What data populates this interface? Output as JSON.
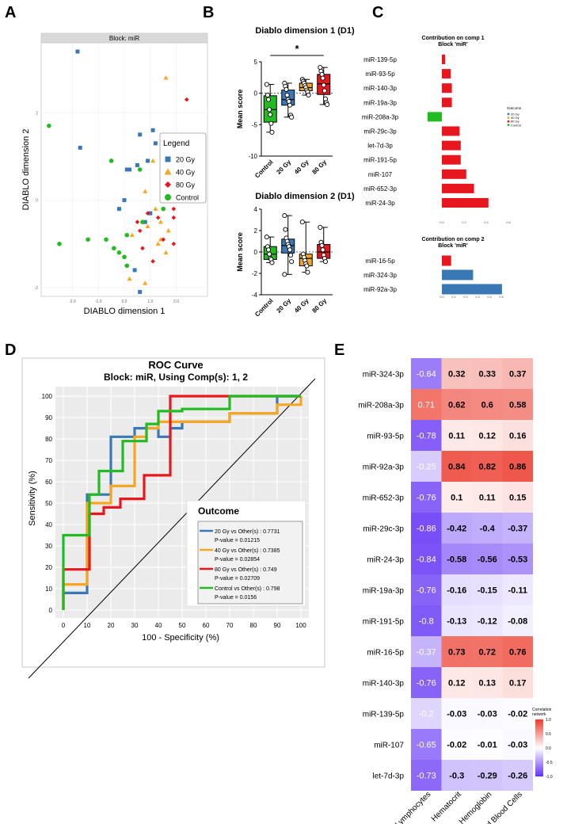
{
  "panels": {
    "a": "A",
    "b": "B",
    "c": "C",
    "d": "D",
    "e": "E"
  },
  "colors": {
    "g20": "#3a78b5",
    "g40": "#f5a623",
    "g80": "#e8171e",
    "ctrl": "#22bb22"
  },
  "chart_data": [
    {
      "id": "A",
      "type": "scatter",
      "title": "Block: miR",
      "xlabel": "DIABLO dimension 1",
      "ylabel": "DIABLO dimension 2",
      "xlim": [
        -3.2,
        3.2
      ],
      "ylim": [
        -2.2,
        3.6
      ],
      "xticks": [
        "-2.0",
        "-1.0",
        "0.0",
        "1.0",
        "2.0"
      ],
      "yticks": [
        "-2",
        "0",
        "2"
      ],
      "legend": {
        "title": "Legend",
        "entries": [
          "20 Gy",
          "40 Gy",
          "80 Gy",
          "Control"
        ]
      },
      "series": [
        {
          "name": "20 Gy",
          "points": [
            [
              -1.8,
              3.4
            ],
            [
              -1.7,
              1.2
            ],
            [
              0.6,
              1.5
            ],
            [
              1.1,
              1.6
            ],
            [
              1.2,
              1.3
            ],
            [
              0.5,
              0.8
            ],
            [
              0.1,
              0.7
            ],
            [
              0.2,
              0.7
            ],
            [
              0.9,
              0.9
            ],
            [
              1.0,
              -0.3
            ],
            [
              0.8,
              -0.5
            ],
            [
              -0.2,
              -0.2
            ],
            [
              0.4,
              -1.6
            ],
            [
              0.6,
              -2.1
            ],
            [
              0.0,
              0.0
            ]
          ]
        },
        {
          "name": "40 Gy",
          "points": [
            [
              1.6,
              2.8
            ],
            [
              1.1,
              0.9
            ],
            [
              0.8,
              0.2
            ],
            [
              1.2,
              -0.2
            ],
            [
              0.9,
              -0.6
            ],
            [
              1.4,
              -0.5
            ],
            [
              0.3,
              -0.8
            ],
            [
              1.3,
              -1.0
            ],
            [
              1.6,
              -1.2
            ],
            [
              0.2,
              -1.8
            ],
            [
              0.8,
              -1.9
            ],
            [
              1.7,
              -0.7
            ],
            [
              1.4,
              -0.9
            ]
          ]
        },
        {
          "name": "80 Gy",
          "points": [
            [
              2.4,
              2.3
            ],
            [
              2.1,
              1.3
            ],
            [
              2.2,
              0.5
            ],
            [
              1.3,
              -0.4
            ],
            [
              1.9,
              -0.2
            ],
            [
              0.9,
              -0.3
            ],
            [
              0.6,
              -0.7
            ],
            [
              1.5,
              -0.9
            ],
            [
              1.9,
              -1.0
            ],
            [
              0.7,
              -1.1
            ],
            [
              1.1,
              -1.4
            ],
            [
              0.5,
              -0.5
            ],
            [
              1.9,
              -0.4
            ]
          ]
        },
        {
          "name": "Control",
          "points": [
            [
              -2.9,
              1.7
            ],
            [
              -2.5,
              -1.0
            ],
            [
              -0.5,
              0.9
            ],
            [
              0.1,
              -0.8
            ],
            [
              -0.7,
              -0.9
            ],
            [
              -0.2,
              -1.2
            ],
            [
              0.1,
              -1.5
            ],
            [
              1.5,
              -0.2
            ],
            [
              0.7,
              -0.5
            ],
            [
              0.0,
              -1.3
            ],
            [
              -0.4,
              -1.1
            ],
            [
              0.6,
              0.7
            ],
            [
              -1.4,
              -0.9
            ]
          ]
        }
      ]
    },
    {
      "id": "B1",
      "type": "boxplot",
      "title": "Diablo dimension 1 (D1)",
      "ylabel": "Mean score",
      "categories": [
        "Control",
        "20 Gy",
        "40 Gy",
        "80 Gy"
      ],
      "ylim": [
        -10,
        5
      ],
      "yticks": [
        5,
        0,
        -5,
        -10
      ],
      "significance": "*",
      "boxes": [
        {
          "min": -6.2,
          "q1": -4.6,
          "median": -2.6,
          "q3": -0.4,
          "max": 1.4,
          "points": [
            1.4,
            -0.3,
            -1.0,
            -2.6,
            -3.4,
            -4.8,
            -6.2
          ]
        },
        {
          "min": -3.8,
          "q1": -1.9,
          "median": -1.0,
          "q3": 0.5,
          "max": 1.6,
          "points": [
            1.6,
            1.1,
            0.6,
            -0.3,
            -1.0,
            -1.3,
            -1.9,
            -3.5,
            -3.8
          ]
        },
        {
          "min": -0.3,
          "q1": 0.4,
          "median": 0.9,
          "q3": 1.6,
          "max": 2.2,
          "points": [
            2.2,
            1.9,
            1.6,
            1.2,
            0.9,
            0.5,
            0.2,
            -0.3
          ]
        },
        {
          "min": -1.8,
          "q1": -0.2,
          "median": 1.5,
          "q3": 3.0,
          "max": 4.1,
          "points": [
            4.1,
            3.5,
            3.0,
            2.4,
            1.3,
            0.4,
            -0.9,
            -1.5,
            -1.8
          ]
        }
      ]
    },
    {
      "id": "B2",
      "type": "boxplot",
      "title": "Diablo dimension 2 (D1)",
      "ylabel": "Mean score",
      "categories": [
        "Control",
        "20 Gy",
        "40 Gy",
        "80 Gy"
      ],
      "ylim": [
        -4,
        4
      ],
      "yticks": [
        4,
        2,
        0,
        -2,
        -4
      ],
      "boxes": [
        {
          "min": -1.0,
          "q1": -0.7,
          "median": -0.2,
          "q3": 0.5,
          "max": 1.4,
          "points": [
            1.4,
            0.5,
            0.2,
            -0.2,
            -0.6,
            -0.7,
            -1.0
          ]
        },
        {
          "min": -2.1,
          "q1": -0.1,
          "median": 0.6,
          "q3": 1.2,
          "max": 3.4,
          "points": [
            3.4,
            2.1,
            1.3,
            1.0,
            0.7,
            0.5,
            0.2,
            -0.3,
            -0.9,
            -2.1
          ]
        },
        {
          "min": -1.9,
          "q1": -1.3,
          "median": -0.6,
          "q3": -0.2,
          "max": 2.8,
          "points": [
            2.8,
            -0.2,
            -0.5,
            -0.8,
            -1.1,
            -1.3,
            -1.9
          ]
        },
        {
          "min": -0.9,
          "q1": -0.6,
          "median": 0.0,
          "q3": 0.7,
          "max": 2.3,
          "points": [
            2.3,
            0.9,
            0.6,
            0.2,
            -0.3,
            -0.6,
            -0.9
          ]
        }
      ]
    },
    {
      "id": "C1",
      "type": "bar",
      "title": "Contribution on comp 1\nBlock 'miR'",
      "categories": [
        "miR-139-5p",
        "miR-93-5p",
        "miR-140-3p",
        "miR-19a-3p",
        "miR-208a-3p",
        "miR-29c-3p",
        "let-7d-3p",
        "miR-191-5p",
        "miR-107",
        "miR-652-3p",
        "miR-24-3p"
      ],
      "values": [
        0.03,
        0.08,
        0.09,
        0.09,
        -0.13,
        0.16,
        0.17,
        0.17,
        0.22,
        0.29,
        0.42
      ],
      "groups": [
        "80 Gy",
        "80 Gy",
        "80 Gy",
        "80 Gy",
        "Control",
        "80 Gy",
        "80 Gy",
        "80 Gy",
        "80 Gy",
        "80 Gy",
        "80 Gy"
      ],
      "xticks": [
        "0.0",
        "0.2",
        "0.4",
        "0.6"
      ],
      "legend": {
        "title": "Outcome",
        "entries": [
          "20 Gy",
          "40 Gy",
          "80 Gy",
          "Control"
        ]
      }
    },
    {
      "id": "C2",
      "type": "bar",
      "title": "Contribution on comp 2\nBlock 'miR'",
      "categories": [
        "miR-16-5p",
        "miR-324-3p",
        "miR-92a-3p"
      ],
      "values": [
        0.08,
        0.27,
        0.52
      ],
      "groups": [
        "80 Gy",
        "20 Gy",
        "20 Gy"
      ],
      "xticks": [
        "0.0",
        "0.1",
        "0.2",
        "0.3",
        "0.4",
        "0.5"
      ]
    },
    {
      "id": "D",
      "type": "line",
      "title": "ROC Curve",
      "subtitle": "Block: miR, Using Comp(s): 1, 2",
      "xlabel": "100 - Specificity (%)",
      "ylabel": "Sensitivity (%)",
      "xlim": [
        0,
        100
      ],
      "ylim": [
        0,
        100
      ],
      "xticks": [
        0,
        10,
        20,
        30,
        40,
        50,
        60,
        70,
        80,
        90,
        100
      ],
      "yticks": [
        0,
        10,
        20,
        30,
        40,
        50,
        60,
        70,
        80,
        90,
        100
      ],
      "legend": {
        "title": "Outcome",
        "entries": [
          {
            "label": "20 Gy vs Other(s) : 0.7731",
            "pvalue": "P-value = 0.01215"
          },
          {
            "label": "40 Gy vs Other(s) : 0.7385",
            "pvalue": "P-value = 0.02854"
          },
          {
            "label": "80 Gy vs Other(s) : 0.749",
            "pvalue": "P-value = 0.02709"
          },
          {
            "label": "Control vs Other(s) : 0.798",
            "pvalue": "P-value = 0.0156"
          }
        ]
      },
      "series": [
        {
          "name": "20 Gy",
          "x": [
            0,
            0,
            10,
            10,
            10,
            20,
            20,
            30,
            30,
            40,
            40,
            45,
            45,
            50,
            50,
            70,
            70,
            90,
            90,
            100
          ],
          "y": [
            0,
            8,
            8,
            46,
            54,
            54,
            81,
            81,
            85,
            85,
            81,
            81,
            85,
            85,
            88,
            88,
            92,
            92,
            100,
            100
          ]
        },
        {
          "name": "40 Gy",
          "x": [
            0,
            0,
            10,
            10,
            20,
            20,
            30,
            30,
            35,
            35,
            40,
            40,
            70,
            70,
            90,
            90,
            100,
            100
          ],
          "y": [
            0,
            12,
            12,
            50,
            50,
            58,
            58,
            81,
            81,
            85,
            85,
            88,
            88,
            92,
            92,
            96,
            96,
            100
          ]
        },
        {
          "name": "80 Gy",
          "x": [
            0,
            0,
            11,
            11,
            17,
            17,
            24,
            24,
            34,
            34,
            45,
            45,
            70,
            70,
            100
          ],
          "y": [
            0,
            19,
            19,
            45,
            45,
            48,
            48,
            52,
            52,
            63,
            63,
            100,
            100,
            100,
            100
          ]
        },
        {
          "name": "Control",
          "x": [
            0,
            0,
            11,
            11,
            15,
            15,
            25,
            25,
            35,
            35,
            40,
            40,
            50,
            50,
            70,
            70,
            100
          ],
          "y": [
            0,
            35,
            35,
            54,
            54,
            65,
            65,
            79,
            79,
            87,
            87,
            93,
            93,
            94,
            94,
            100,
            100
          ]
        }
      ]
    },
    {
      "id": "E",
      "type": "heatmap",
      "legend_title": "Correlation\nnetwork",
      "legend_ticks": [
        "1.0",
        "0.5",
        "0.0",
        "-0.5",
        "-1.0"
      ],
      "rows": [
        "miR-324-3p",
        "miR-208a-3p",
        "miR-93-5p",
        "miR-92a-3p",
        "miR-652-3p",
        "miR-29c-3p",
        "miR-24-3p",
        "miR-19a-3p",
        "miR-191-5p",
        "miR-16-5p",
        "miR-140-3p",
        "miR-139-5p",
        "miR-107",
        "let-7d-3p"
      ],
      "cols": [
        "Lymphocytes",
        "Hematocrit",
        "Hemoglobin",
        "Red Blood Cells"
      ],
      "values": [
        [
          -0.64,
          0.32,
          0.33,
          0.37
        ],
        [
          0.71,
          0.62,
          0.6,
          0.58
        ],
        [
          -0.78,
          0.11,
          0.12,
          0.16
        ],
        [
          -0.25,
          0.84,
          0.82,
          0.86
        ],
        [
          -0.76,
          0.1,
          0.11,
          0.15
        ],
        [
          -0.86,
          -0.42,
          -0.4,
          -0.37
        ],
        [
          -0.84,
          -0.58,
          -0.56,
          -0.53
        ],
        [
          -0.76,
          -0.16,
          -0.15,
          -0.11
        ],
        [
          -0.8,
          -0.13,
          -0.12,
          -0.08
        ],
        [
          -0.37,
          0.73,
          0.72,
          0.76
        ],
        [
          -0.76,
          0.12,
          0.13,
          0.17
        ],
        [
          -0.2,
          -0.03,
          -0.03,
          -0.02
        ],
        [
          -0.65,
          -0.02,
          -0.01,
          -0.03
        ],
        [
          -0.73,
          -0.3,
          -0.29,
          -0.26
        ]
      ]
    }
  ]
}
